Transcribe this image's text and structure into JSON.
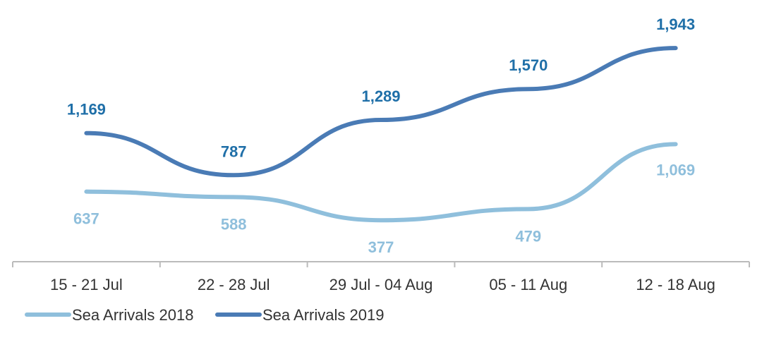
{
  "chart_data": {
    "type": "line",
    "title": "",
    "xlabel": "",
    "ylabel": "",
    "categories": [
      "15 - 21 Jul",
      "22 - 28 Jul",
      "29 Jul - 04 Aug",
      "05 - 11 Aug",
      "12 - 18 Aug"
    ],
    "series": [
      {
        "name": "Sea Arrivals 2018",
        "values": [
          637,
          588,
          377,
          479,
          1069
        ],
        "value_labels": [
          "637",
          "588",
          "377",
          "479",
          "1,069"
        ],
        "color": "#8fbfdc"
      },
      {
        "name": "Sea Arrivals 2019",
        "values": [
          1169,
          787,
          1289,
          1570,
          1943
        ],
        "value_labels": [
          "1,169",
          "787",
          "1,289",
          "1,570",
          "1,943"
        ],
        "color": "#4a7bb5"
      }
    ],
    "ylim": [
      0,
      2200
    ],
    "grid": false,
    "legend": "bottom-left",
    "label_color_2019": "#1f6fa8",
    "axis_color": "#bbbbbb"
  }
}
